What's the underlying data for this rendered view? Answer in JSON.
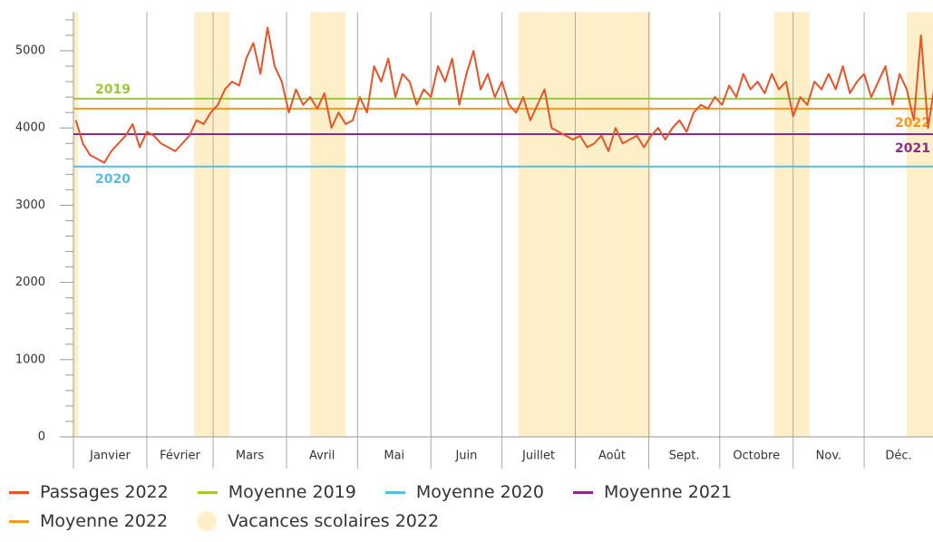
{
  "chart_data": {
    "type": "line",
    "categories": [
      "Janvier",
      "Février",
      "Mars",
      "Avril",
      "Mai",
      "Juin",
      "Juillet",
      "Août",
      "Sept.",
      "Octobre",
      "Nov.",
      "Déc."
    ],
    "xlim": [
      0,
      365
    ],
    "xticks": [
      0,
      31,
      59,
      90,
      120,
      151,
      181,
      212,
      243,
      273,
      304,
      334
    ],
    "ylim": [
      0,
      5500
    ],
    "yticks": [
      0,
      1000,
      2000,
      3000,
      4000,
      5000
    ],
    "yminor": [
      200,
      400,
      600,
      800,
      1200,
      1400,
      1600,
      1800,
      2200,
      2400,
      2600,
      2800,
      3200,
      3400,
      3600,
      3800,
      4200,
      4400,
      4600,
      4800,
      5200,
      5400
    ],
    "x": [
      1,
      4,
      7,
      10,
      13,
      16,
      19,
      22,
      25,
      28,
      31,
      34,
      37,
      40,
      43,
      46,
      49,
      52,
      55,
      58,
      61,
      64,
      67,
      70,
      73,
      76,
      79,
      82,
      85,
      88,
      91,
      94,
      97,
      100,
      103,
      106,
      109,
      112,
      115,
      118,
      121,
      124,
      127,
      130,
      133,
      136,
      139,
      142,
      145,
      148,
      151,
      154,
      157,
      160,
      163,
      166,
      169,
      172,
      175,
      178,
      181,
      184,
      187,
      190,
      193,
      196,
      199,
      202,
      205,
      208,
      211,
      214,
      217,
      220,
      223,
      226,
      229,
      232,
      235,
      238,
      241,
      244,
      247,
      250,
      253,
      256,
      259,
      262,
      265,
      268,
      271,
      274,
      277,
      280,
      283,
      286,
      289,
      292,
      295,
      298,
      301,
      304,
      307,
      310,
      313,
      316,
      319,
      322,
      325,
      328,
      331,
      334,
      337,
      340,
      343,
      346,
      349,
      352,
      355,
      358,
      361,
      364
    ],
    "series": [
      {
        "name": "Passages 2022",
        "color": "#e8532a",
        "values": [
          4100,
          3800,
          3650,
          3600,
          3550,
          3700,
          3800,
          3900,
          4050,
          3750,
          3950,
          3900,
          3800,
          3750,
          3700,
          3800,
          3900,
          4100,
          4050,
          4200,
          4300,
          4500,
          4600,
          4550,
          4900,
          5100,
          4700,
          5300,
          4800,
          4600,
          4200,
          4500,
          4300,
          4400,
          4250,
          4450,
          4000,
          4200,
          4050,
          4100,
          4400,
          4200,
          4800,
          4600,
          4900,
          4400,
          4700,
          4600,
          4300,
          4500,
          4400,
          4800,
          4600,
          4900,
          4300,
          4700,
          5000,
          4500,
          4700,
          4400,
          4600,
          4300,
          4200,
          4400,
          4100,
          4300,
          4500,
          4000,
          3950,
          3900,
          3850,
          3900,
          3750,
          3800,
          3900,
          3700,
          4000,
          3800,
          3850,
          3900,
          3750,
          3900,
          4000,
          3850,
          4000,
          4100,
          3950,
          4200,
          4300,
          4250,
          4400,
          4300,
          4550,
          4400,
          4700,
          4500,
          4600,
          4450,
          4700,
          4500,
          4600,
          4150,
          4400,
          4300,
          4600,
          4500,
          4700,
          4500,
          4800,
          4450,
          4600,
          4700,
          4400,
          4600,
          4800,
          4300,
          4700,
          4500,
          4100,
          5200,
          4000,
          4600
        ]
      }
    ],
    "reference_lines": [
      {
        "name": "Moyenne 2019",
        "label": "2019",
        "value": 4380,
        "color": "#9dc83c"
      },
      {
        "name": "Moyenne 2020",
        "label": "2020",
        "value": 3500,
        "color": "#5bbcdc"
      },
      {
        "name": "Moyenne 2021",
        "label": "2021",
        "value": 3920,
        "color": "#8b2a8e"
      },
      {
        "name": "Moyenne 2022",
        "label": "2022",
        "value": 4250,
        "color": "#f39a1e"
      }
    ],
    "bands_name": "Vacances scolaires 2022",
    "bands_color": "#fdf0c8",
    "bands": [
      [
        0,
        2
      ],
      [
        51,
        66
      ],
      [
        100,
        115
      ],
      [
        188,
        244
      ],
      [
        296,
        311
      ],
      [
        352,
        365
      ]
    ]
  }
}
